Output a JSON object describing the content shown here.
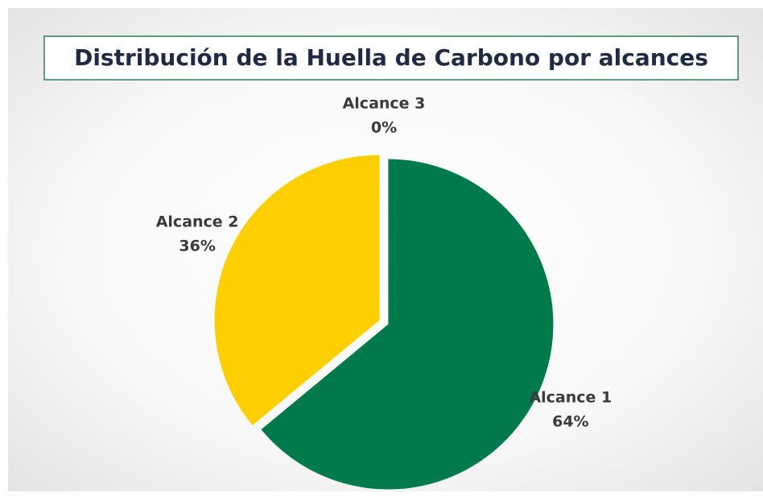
{
  "chart_data": {
    "type": "pie",
    "title": "Distribución de la Huella de Carbono por alcances",
    "categories": [
      "Alcance 1",
      "Alcance 2",
      "Alcance 3"
    ],
    "values": [
      64,
      36,
      0
    ],
    "value_labels": [
      "64%",
      "36%",
      "0%"
    ],
    "colors": [
      "#00794b",
      "#fdcf00",
      "#9e9e9e"
    ]
  }
}
